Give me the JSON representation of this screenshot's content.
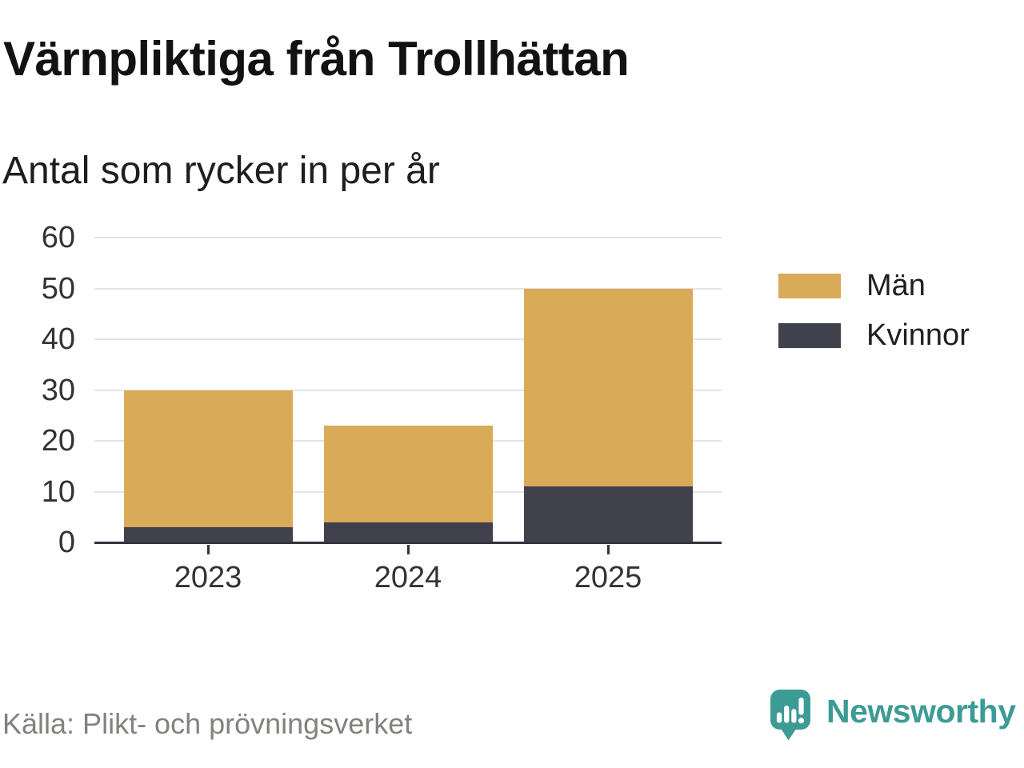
{
  "title": "Värnpliktiga från Trollhättan",
  "subtitle": "Antal som rycker in per år",
  "source": "Källa: Plikt- och prövningsverket",
  "brand": {
    "name": "Newsworthy",
    "color": "#3d9b95",
    "icon": "newsworthy-speech-bubble-bar-chart-icon"
  },
  "chart_data": {
    "type": "bar",
    "stacked": true,
    "title": "Värnpliktiga från Trollhättan",
    "subtitle": "Antal som rycker in per år",
    "categories": [
      "2023",
      "2024",
      "2025"
    ],
    "series": [
      {
        "name": "Män",
        "color": "#d9aa58",
        "values": [
          27,
          19,
          39
        ]
      },
      {
        "name": "Kvinnor",
        "color": "#41404d",
        "values": [
          3,
          4,
          11
        ]
      }
    ],
    "stack_order_bottom_to_top": [
      "Kvinnor",
      "Män"
    ],
    "totals": [
      30,
      23,
      50
    ],
    "xlabel": "",
    "ylabel": "",
    "ylim": [
      0,
      60
    ],
    "yticks": [
      0,
      10,
      20,
      30,
      40,
      50,
      60
    ],
    "grid": "horizontal",
    "legend_position": "right"
  }
}
